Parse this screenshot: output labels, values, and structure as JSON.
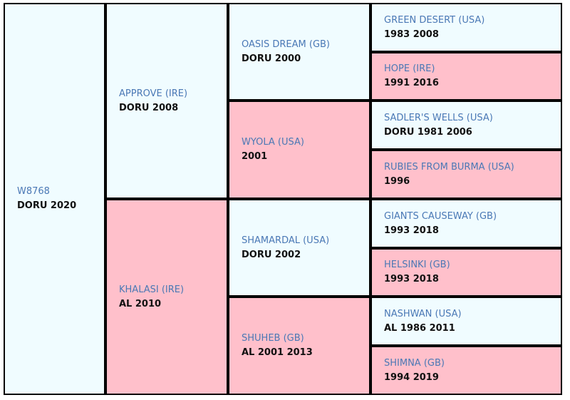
{
  "colors": {
    "sire_cell": "#f0fcff",
    "dam_cell": "#ffc0cb",
    "name_text": "#4a78b5",
    "border": "#000000"
  },
  "pedigree": {
    "subject": {
      "name": "W8768",
      "info": "DORU 2020"
    },
    "sire": {
      "name": "APPROVE (IRE)",
      "info": "DORU 2008"
    },
    "dam": {
      "name": "KHALASI (IRE)",
      "info": "AL 2010"
    },
    "ss": {
      "name": "OASIS DREAM (GB)",
      "info": "DORU 2000"
    },
    "sd": {
      "name": "WYOLA (USA)",
      "info": "2001"
    },
    "ds": {
      "name": "SHAMARDAL (USA)",
      "info": "DORU 2002"
    },
    "dd": {
      "name": "SHUHEB (GB)",
      "info": "AL 2001 2013"
    },
    "sss": {
      "name": "GREEN DESERT (USA)",
      "info": "1983 2008"
    },
    "ssd": {
      "name": "HOPE (IRE)",
      "info": "1991 2016"
    },
    "sds": {
      "name": "SADLER'S WELLS (USA)",
      "info": "DORU 1981 2006"
    },
    "sdd": {
      "name": "RUBIES FROM BURMA (USA)",
      "info": "1996"
    },
    "dss": {
      "name": "GIANTS CAUSEWAY (GB)",
      "info": "1993 2018"
    },
    "dsd": {
      "name": "HELSINKI (GB)",
      "info": "1993 2018"
    },
    "dds": {
      "name": "NASHWAN (USA)",
      "info": "AL 1986 2011"
    },
    "ddd": {
      "name": "SHIMNA (GB)",
      "info": "1994 2019"
    }
  }
}
